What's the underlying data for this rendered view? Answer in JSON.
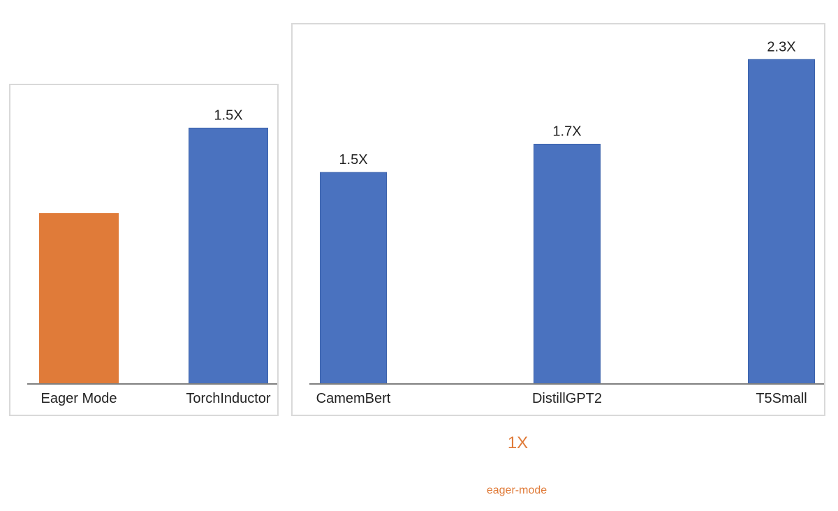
{
  "chart_data": [
    {
      "type": "bar",
      "categories": [
        "Eager Mode",
        "TorchInductor"
      ],
      "values": [
        1.0,
        1.5
      ],
      "data_labels": [
        "",
        "1.5X"
      ],
      "colors": [
        "#E07B39",
        "#4A72BF"
      ],
      "title": "",
      "xlabel": "",
      "ylabel": "",
      "ylim": [
        0,
        1.6
      ],
      "grid": false,
      "legend": "none"
    },
    {
      "type": "bar",
      "categories": [
        "CamemBert",
        "DistillGPT2",
        "T5Small"
      ],
      "values": [
        1.5,
        1.7,
        2.3
      ],
      "data_labels": [
        "1.5X",
        "1.7X",
        "2.3X"
      ],
      "colors": [
        "#4A72BF",
        "#4A72BF",
        "#4A72BF"
      ],
      "title": "",
      "xlabel": "",
      "ylabel": "",
      "ylim": [
        0,
        2.43
      ],
      "grid": false,
      "legend": "none"
    }
  ],
  "annotations": {
    "baseline_value": "1X",
    "baseline_caption": "eager-mode"
  },
  "colors": {
    "eager": "#E07B39",
    "compiled": "#4A72BF",
    "axis": "#7f7f7f",
    "border": "#d9d9d9"
  }
}
